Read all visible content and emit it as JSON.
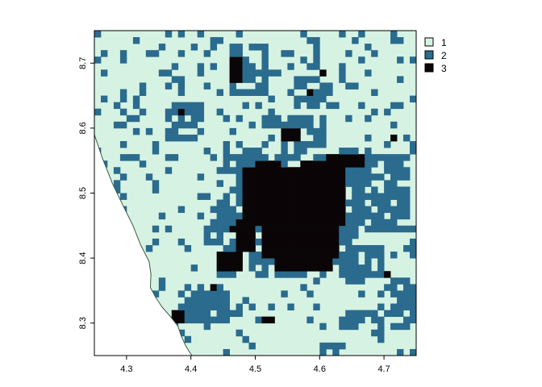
{
  "chart_data": {
    "type": "heatmap",
    "subtype": "categorical raster map",
    "title": "",
    "xlabel": "",
    "ylabel": "",
    "xlim": [
      4.25,
      4.75
    ],
    "ylim": [
      8.25,
      8.75
    ],
    "x_ticks": [
      4.3,
      4.4,
      4.5,
      4.6,
      4.7
    ],
    "x_tick_labels": [
      "4.3",
      "4.4",
      "4.5",
      "4.6",
      "4.7"
    ],
    "y_ticks": [
      8.3,
      8.4,
      8.5,
      8.6,
      8.7
    ],
    "y_tick_labels": [
      "8.3",
      "8.4",
      "8.5",
      "8.6",
      "8.7"
    ],
    "grid": false,
    "legend": {
      "placement": "right",
      "entries": [
        {
          "value": 1,
          "label": "1",
          "color": "#d6f2e2"
        },
        {
          "value": 2,
          "label": "2",
          "color": "#2a6b8e"
        },
        {
          "value": 3,
          "label": "3",
          "color": "#0a0506"
        }
      ]
    },
    "cell_size": [
      0.01,
      0.01
    ],
    "boundary_line": {
      "color": "#3c5a44",
      "points": [
        [
          4.25,
          8.59
        ],
        [
          4.262,
          8.555
        ],
        [
          4.278,
          8.515
        ],
        [
          4.295,
          8.48
        ],
        [
          4.31,
          8.45
        ],
        [
          4.322,
          8.42
        ],
        [
          4.335,
          8.395
        ],
        [
          4.338,
          8.375
        ],
        [
          4.337,
          8.355
        ],
        [
          4.345,
          8.34
        ],
        [
          4.355,
          8.325
        ],
        [
          4.368,
          8.31
        ],
        [
          4.38,
          8.295
        ],
        [
          4.385,
          8.28
        ],
        [
          4.392,
          8.265
        ],
        [
          4.398,
          8.255
        ],
        [
          4.402,
          8.25
        ]
      ]
    },
    "class3_patches": [
      {
        "x": [
          4.48,
          4.64
        ],
        "y": [
          8.45,
          8.54
        ]
      },
      {
        "x": [
          4.51,
          4.63
        ],
        "y": [
          8.4,
          8.46
        ]
      },
      {
        "x": [
          4.53,
          4.62
        ],
        "y": [
          8.385,
          8.4
        ]
      },
      {
        "x": [
          4.475,
          4.5
        ],
        "y": [
          8.41,
          8.46
        ]
      },
      {
        "x": [
          4.5,
          4.54
        ],
        "y": [
          8.53,
          8.55
        ]
      },
      {
        "x": [
          4.57,
          4.62
        ],
        "y": [
          8.53,
          8.55
        ]
      },
      {
        "x": [
          4.61,
          4.67
        ],
        "y": [
          8.54,
          8.56
        ]
      },
      {
        "x": [
          4.44,
          4.48
        ],
        "y": [
          8.385,
          8.41
        ]
      },
      {
        "x": [
          4.46,
          4.48
        ],
        "y": [
          8.67,
          8.71
        ]
      },
      {
        "x": [
          4.545,
          4.565
        ],
        "y": [
          8.58,
          8.6
        ]
      },
      {
        "x": [
          4.71,
          4.72
        ],
        "y": [
          8.58,
          8.59
        ]
      },
      {
        "x": [
          4.37,
          4.39
        ],
        "y": [
          8.3,
          8.32
        ]
      },
      {
        "x": [
          4.515,
          4.53
        ],
        "y": [
          8.3,
          8.31
        ]
      },
      {
        "x": [
          4.7,
          4.715
        ],
        "y": [
          8.37,
          8.38
        ]
      },
      {
        "x": [
          4.555,
          4.57
        ],
        "y": [
          8.38,
          8.39
        ]
      },
      {
        "x": [
          4.58,
          4.595
        ],
        "y": [
          8.655,
          8.665
        ]
      },
      {
        "x": [
          4.465,
          4.48
        ],
        "y": [
          8.44,
          8.455
        ]
      },
      {
        "x": [
          4.38,
          4.39
        ],
        "y": [
          8.625,
          8.635
        ]
      },
      {
        "x": [
          4.6,
          4.61
        ],
        "y": [
          8.68,
          8.69
        ]
      },
      {
        "x": [
          4.43,
          4.44
        ],
        "y": [
          8.355,
          8.365
        ]
      }
    ],
    "class2_patches": [
      {
        "x": [
          4.44,
          4.66
        ],
        "y": [
          8.37,
          8.57
        ]
      },
      {
        "x": [
          4.51,
          4.61
        ],
        "y": [
          8.57,
          8.62
        ]
      },
      {
        "x": [
          4.46,
          4.52
        ],
        "y": [
          8.65,
          8.73
        ]
      },
      {
        "x": [
          4.56,
          4.62
        ],
        "y": [
          8.63,
          8.68
        ]
      },
      {
        "x": [
          4.66,
          4.74
        ],
        "y": [
          8.44,
          8.56
        ]
      },
      {
        "x": [
          4.38,
          4.46
        ],
        "y": [
          8.3,
          8.36
        ]
      },
      {
        "x": [
          4.64,
          4.7
        ],
        "y": [
          8.36,
          8.42
        ]
      },
      {
        "x": [
          4.63,
          4.73
        ],
        "y": [
          8.29,
          8.32
        ]
      },
      {
        "x": [
          4.71,
          4.75
        ],
        "y": [
          8.29,
          8.37
        ]
      },
      {
        "x": [
          4.6,
          4.64
        ],
        "y": [
          8.25,
          8.27
        ]
      },
      {
        "x": [
          4.36,
          4.42
        ],
        "y": [
          8.58,
          8.64
        ]
      }
    ],
    "class2_cell_density": 0.13
  }
}
